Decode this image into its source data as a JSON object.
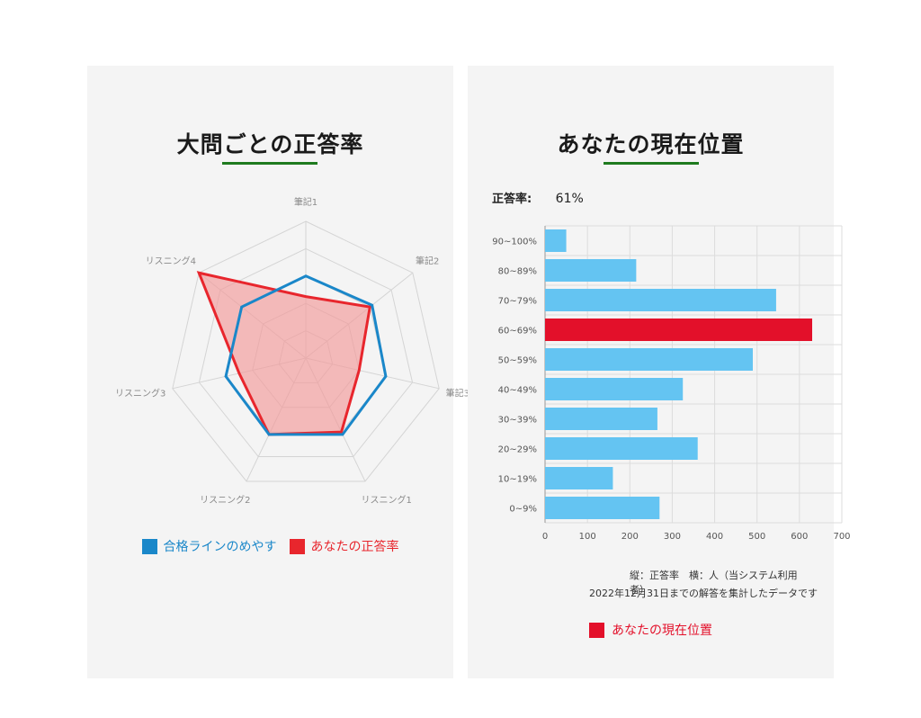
{
  "colors": {
    "pass_line": "#1a87c9",
    "your_score_stroke": "#e8262d",
    "your_score_fill": "#f29a9a",
    "bar": "#64c4f2",
    "bar_highlight": "#e3102a",
    "title_underline": "#1e7a1e"
  },
  "left_panel": {
    "title": "大問ごとの正答率",
    "legend": [
      {
        "label": "合格ラインのめやす",
        "color": "#1a87c9"
      },
      {
        "label": "あなたの正答率",
        "color": "#e8262d"
      }
    ]
  },
  "right_panel": {
    "title": "あなたの現在位置",
    "accuracy_label": "正答率:",
    "accuracy_value": "61%",
    "note_axes": "縦：正答率　横：人（当システム利用者）",
    "note_date": "2022年12月31日までの解答を集計したデータです",
    "legend_label": "あなたの現在位置"
  },
  "chart_data": [
    {
      "type": "radar",
      "axes": [
        "筆記1",
        "筆記2",
        "筆記3",
        "リスニング1",
        "リスニング2",
        "リスニング3",
        "リスニング4"
      ],
      "range": [
        0,
        100
      ],
      "rings": 5,
      "series": [
        {
          "name": "合格ラインのめやす",
          "values": [
            60,
            62,
            60,
            62,
            62,
            60,
            60
          ]
        },
        {
          "name": "あなたの正答率",
          "values": [
            45,
            60,
            40,
            60,
            62,
            50,
            100
          ]
        }
      ]
    },
    {
      "type": "bar",
      "orientation": "horizontal",
      "categories": [
        "90~100%",
        "80~89%",
        "70~79%",
        "60~69%",
        "50~59%",
        "40~49%",
        "30~39%",
        "20~29%",
        "10~19%",
        "0~9%"
      ],
      "values": [
        50,
        215,
        545,
        630,
        490,
        325,
        265,
        360,
        160,
        270
      ],
      "highlight": "60~69%",
      "xlim": [
        0,
        700
      ],
      "xticks": [
        0,
        100,
        200,
        300,
        400,
        500,
        600,
        700
      ],
      "grid": true
    }
  ]
}
